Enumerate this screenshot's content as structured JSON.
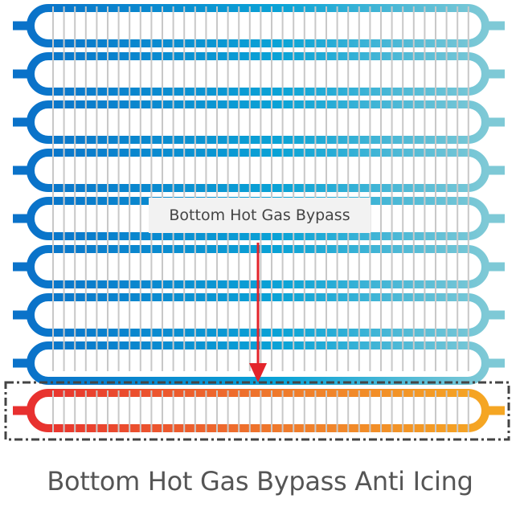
{
  "diagram": {
    "callout_label": "Bottom Hot Gas Bypass",
    "caption": "Bottom Hot Gas Bypass Anti Icing",
    "colors": {
      "cold_left": "#0a72c9",
      "cold_mid": "#0aa3d6",
      "cold_right": "#7ec9d6",
      "hot_left": "#e8302f",
      "hot_mid": "#ef7a2c",
      "hot_right": "#f5a623",
      "fin": "#c8c8c8",
      "arrow": "#e3242b",
      "callout_bg": "#f2f2f2",
      "selection_border": "#444444"
    },
    "cold_coil_count": 8,
    "hot_coil_count": 1
  }
}
